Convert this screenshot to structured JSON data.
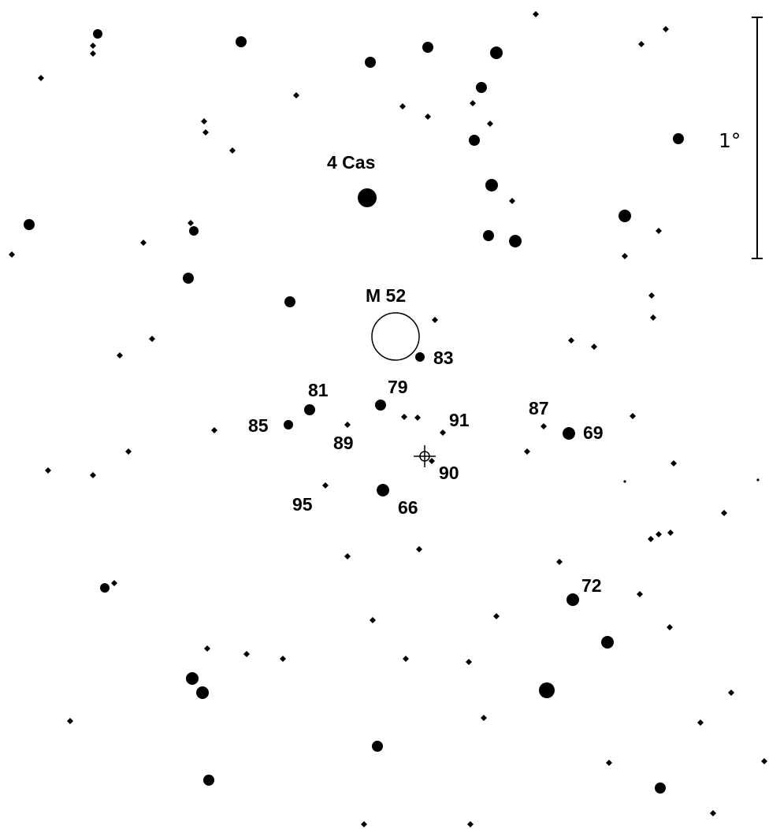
{
  "map": {
    "type": "star chart",
    "scale_label": "1°",
    "colors": {
      "background": "#ffffff",
      "ink": "#000000"
    },
    "labels": {
      "star_4cas": "4 Cas",
      "cluster_m52": "M 52",
      "s83": "83",
      "s81": "81",
      "s79": "79",
      "s85": "85",
      "s89": "89",
      "s91": "91",
      "s87": "87",
      "s69": "69",
      "s90": "90",
      "s95": "95",
      "s66": "66",
      "s72": "72"
    }
  }
}
